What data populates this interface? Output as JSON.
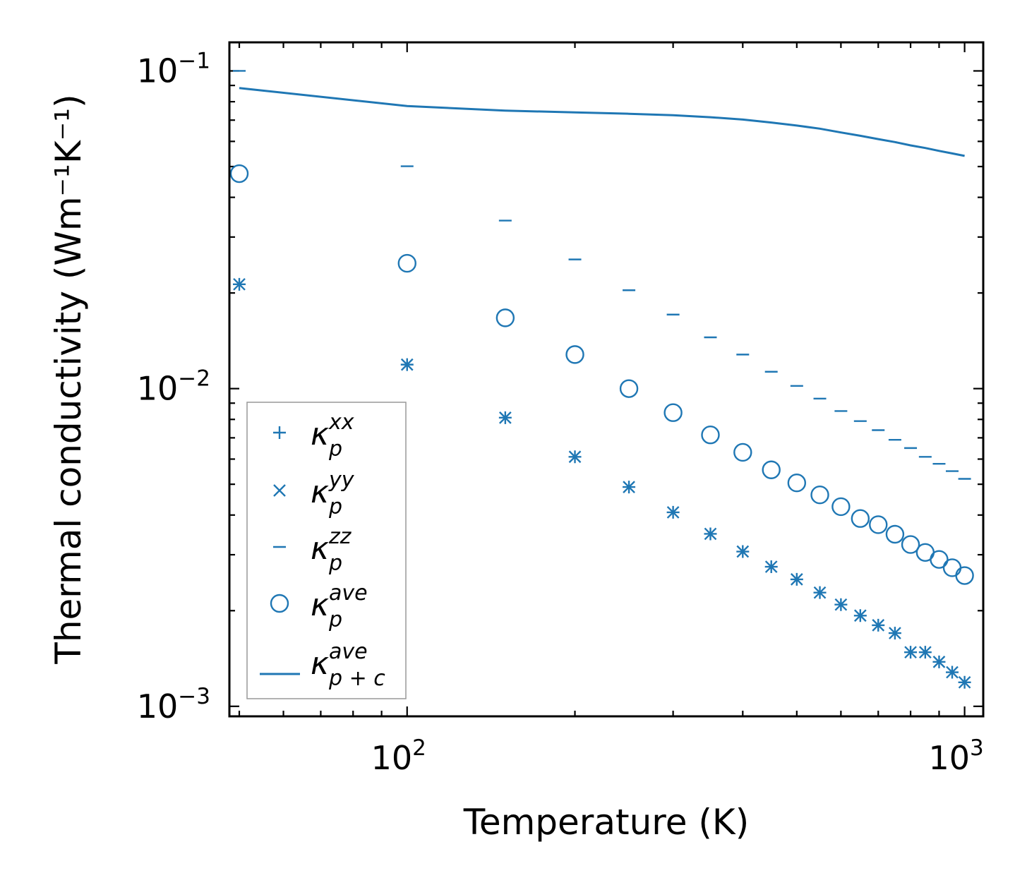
{
  "chart_data": {
    "type": "scatter",
    "xscale": "log",
    "yscale": "log",
    "xlabel": "Temperature (K)",
    "ylabel": "Thermal conductivity (Wm⁻¹K⁻¹)",
    "xlim": [
      48,
      1080
    ],
    "ylim": [
      0.00093,
      0.123
    ],
    "x_ticks": [
      {
        "value": 100,
        "base": "10",
        "exp": "2"
      },
      {
        "value": 1000,
        "base": "10",
        "exp": "3"
      }
    ],
    "y_ticks": [
      {
        "value": 0.1,
        "base": "10",
        "exp": "−1"
      },
      {
        "value": 0.01,
        "base": "10",
        "exp": "−2"
      },
      {
        "value": 0.001,
        "base": "10",
        "exp": "−3"
      }
    ],
    "color": "#1f77b4",
    "legend_position": "lower-left",
    "x": [
      50,
      100,
      150,
      200,
      250,
      300,
      350,
      400,
      450,
      500,
      550,
      600,
      650,
      700,
      750,
      800,
      850,
      900,
      950,
      1000
    ],
    "series": [
      {
        "name": "κp^xx",
        "base": "κ",
        "sub": "p",
        "sup": "xx",
        "marker": "plus",
        "values": [
          0.0213,
          0.0119,
          0.0081,
          0.0061,
          0.0049,
          0.00408,
          0.00349,
          0.00307,
          0.00275,
          0.00251,
          0.00228,
          0.00209,
          0.00193,
          0.0018,
          0.0017,
          0.00148,
          0.00148,
          0.00138,
          0.00128,
          0.00119
        ]
      },
      {
        "name": "κp^yy",
        "base": "κ",
        "sub": "p",
        "sup": "yy",
        "marker": "x",
        "values": [
          0.0213,
          0.0119,
          0.0081,
          0.0061,
          0.0049,
          0.00408,
          0.00349,
          0.00307,
          0.00275,
          0.00251,
          0.00228,
          0.00209,
          0.00193,
          0.0018,
          0.0017,
          0.00148,
          0.00148,
          0.00138,
          0.00128,
          0.00119
        ]
      },
      {
        "name": "κp^zz",
        "base": "κ",
        "sub": "p",
        "sup": "zz",
        "marker": "hline",
        "values": [
          0.1,
          0.0501,
          0.0338,
          0.0255,
          0.0204,
          0.0171,
          0.0145,
          0.0128,
          0.0113,
          0.0102,
          0.0093,
          0.0085,
          0.0079,
          0.0074,
          0.0069,
          0.0065,
          0.0061,
          0.0058,
          0.0055,
          0.0052
        ]
      },
      {
        "name": "κp^ave",
        "base": "κ",
        "sub": "p",
        "sup": "ave",
        "marker": "circle",
        "values": [
          0.0475,
          0.0248,
          0.0167,
          0.0128,
          0.01,
          0.0084,
          0.00715,
          0.0063,
          0.00555,
          0.00505,
          0.00463,
          0.00425,
          0.0039,
          0.00373,
          0.00348,
          0.00323,
          0.00305,
          0.0029,
          0.00273,
          0.00258
        ]
      },
      {
        "name": "κp+c^ave",
        "base": "κ",
        "sub": "p + c",
        "sup": "ave",
        "marker": "line",
        "values": [
          0.0883,
          0.0775,
          0.075,
          0.074,
          0.0733,
          0.0725,
          0.0715,
          0.0703,
          0.0688,
          0.0673,
          0.0658,
          0.064,
          0.0625,
          0.061,
          0.0597,
          0.0583,
          0.0572,
          0.056,
          0.055,
          0.054
        ]
      }
    ]
  }
}
